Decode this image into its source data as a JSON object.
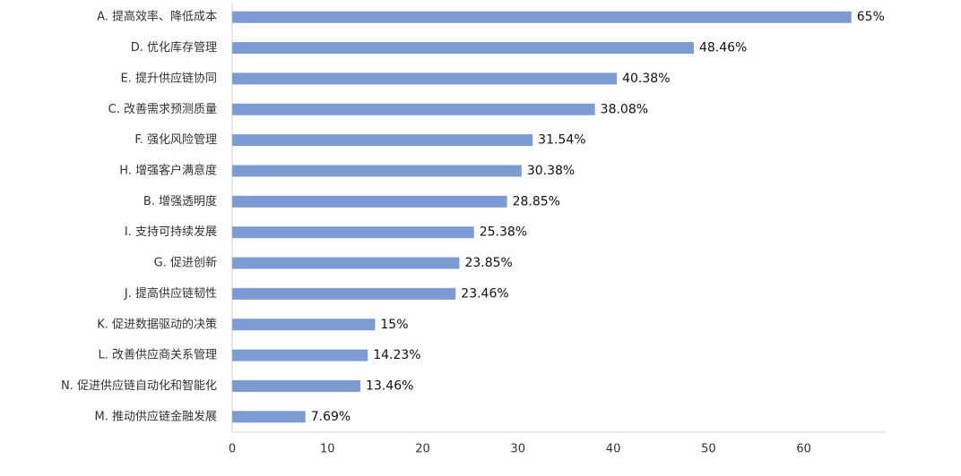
{
  "chart_data": {
    "type": "bar",
    "orientation": "horizontal",
    "categories": [
      "A. 提高效率、降低成本",
      "D. 优化库存管理",
      "E. 提升供应链协同",
      "C. 改善需求预测质量",
      "F. 强化风险管理",
      "H. 增强客户满意度",
      "B. 增强透明度",
      "I. 支持可持续发展",
      "G. 促进创新",
      "J. 提高供应链韧性",
      "K. 促进数据驱动的决策",
      "L. 改善供应商关系管理",
      "N. 促进供应链自动化和智能化",
      "M. 推动供应链金融发展"
    ],
    "values": [
      65,
      48.46,
      40.38,
      38.08,
      31.54,
      30.38,
      28.85,
      25.38,
      23.85,
      23.46,
      15,
      14.23,
      13.46,
      7.69
    ],
    "value_labels": [
      "65%",
      "48.46%",
      "40.38%",
      "38.08%",
      "31.54%",
      "30.38%",
      "28.85%",
      "25.38%",
      "23.85%",
      "23.46%",
      "15%",
      "14.23%",
      "13.46%",
      "7.69%"
    ],
    "color": "#7b9bd2",
    "xlim": [
      0,
      68.6
    ],
    "xticks": [
      0,
      10,
      20,
      30,
      40,
      50,
      60
    ],
    "grid": false
  }
}
